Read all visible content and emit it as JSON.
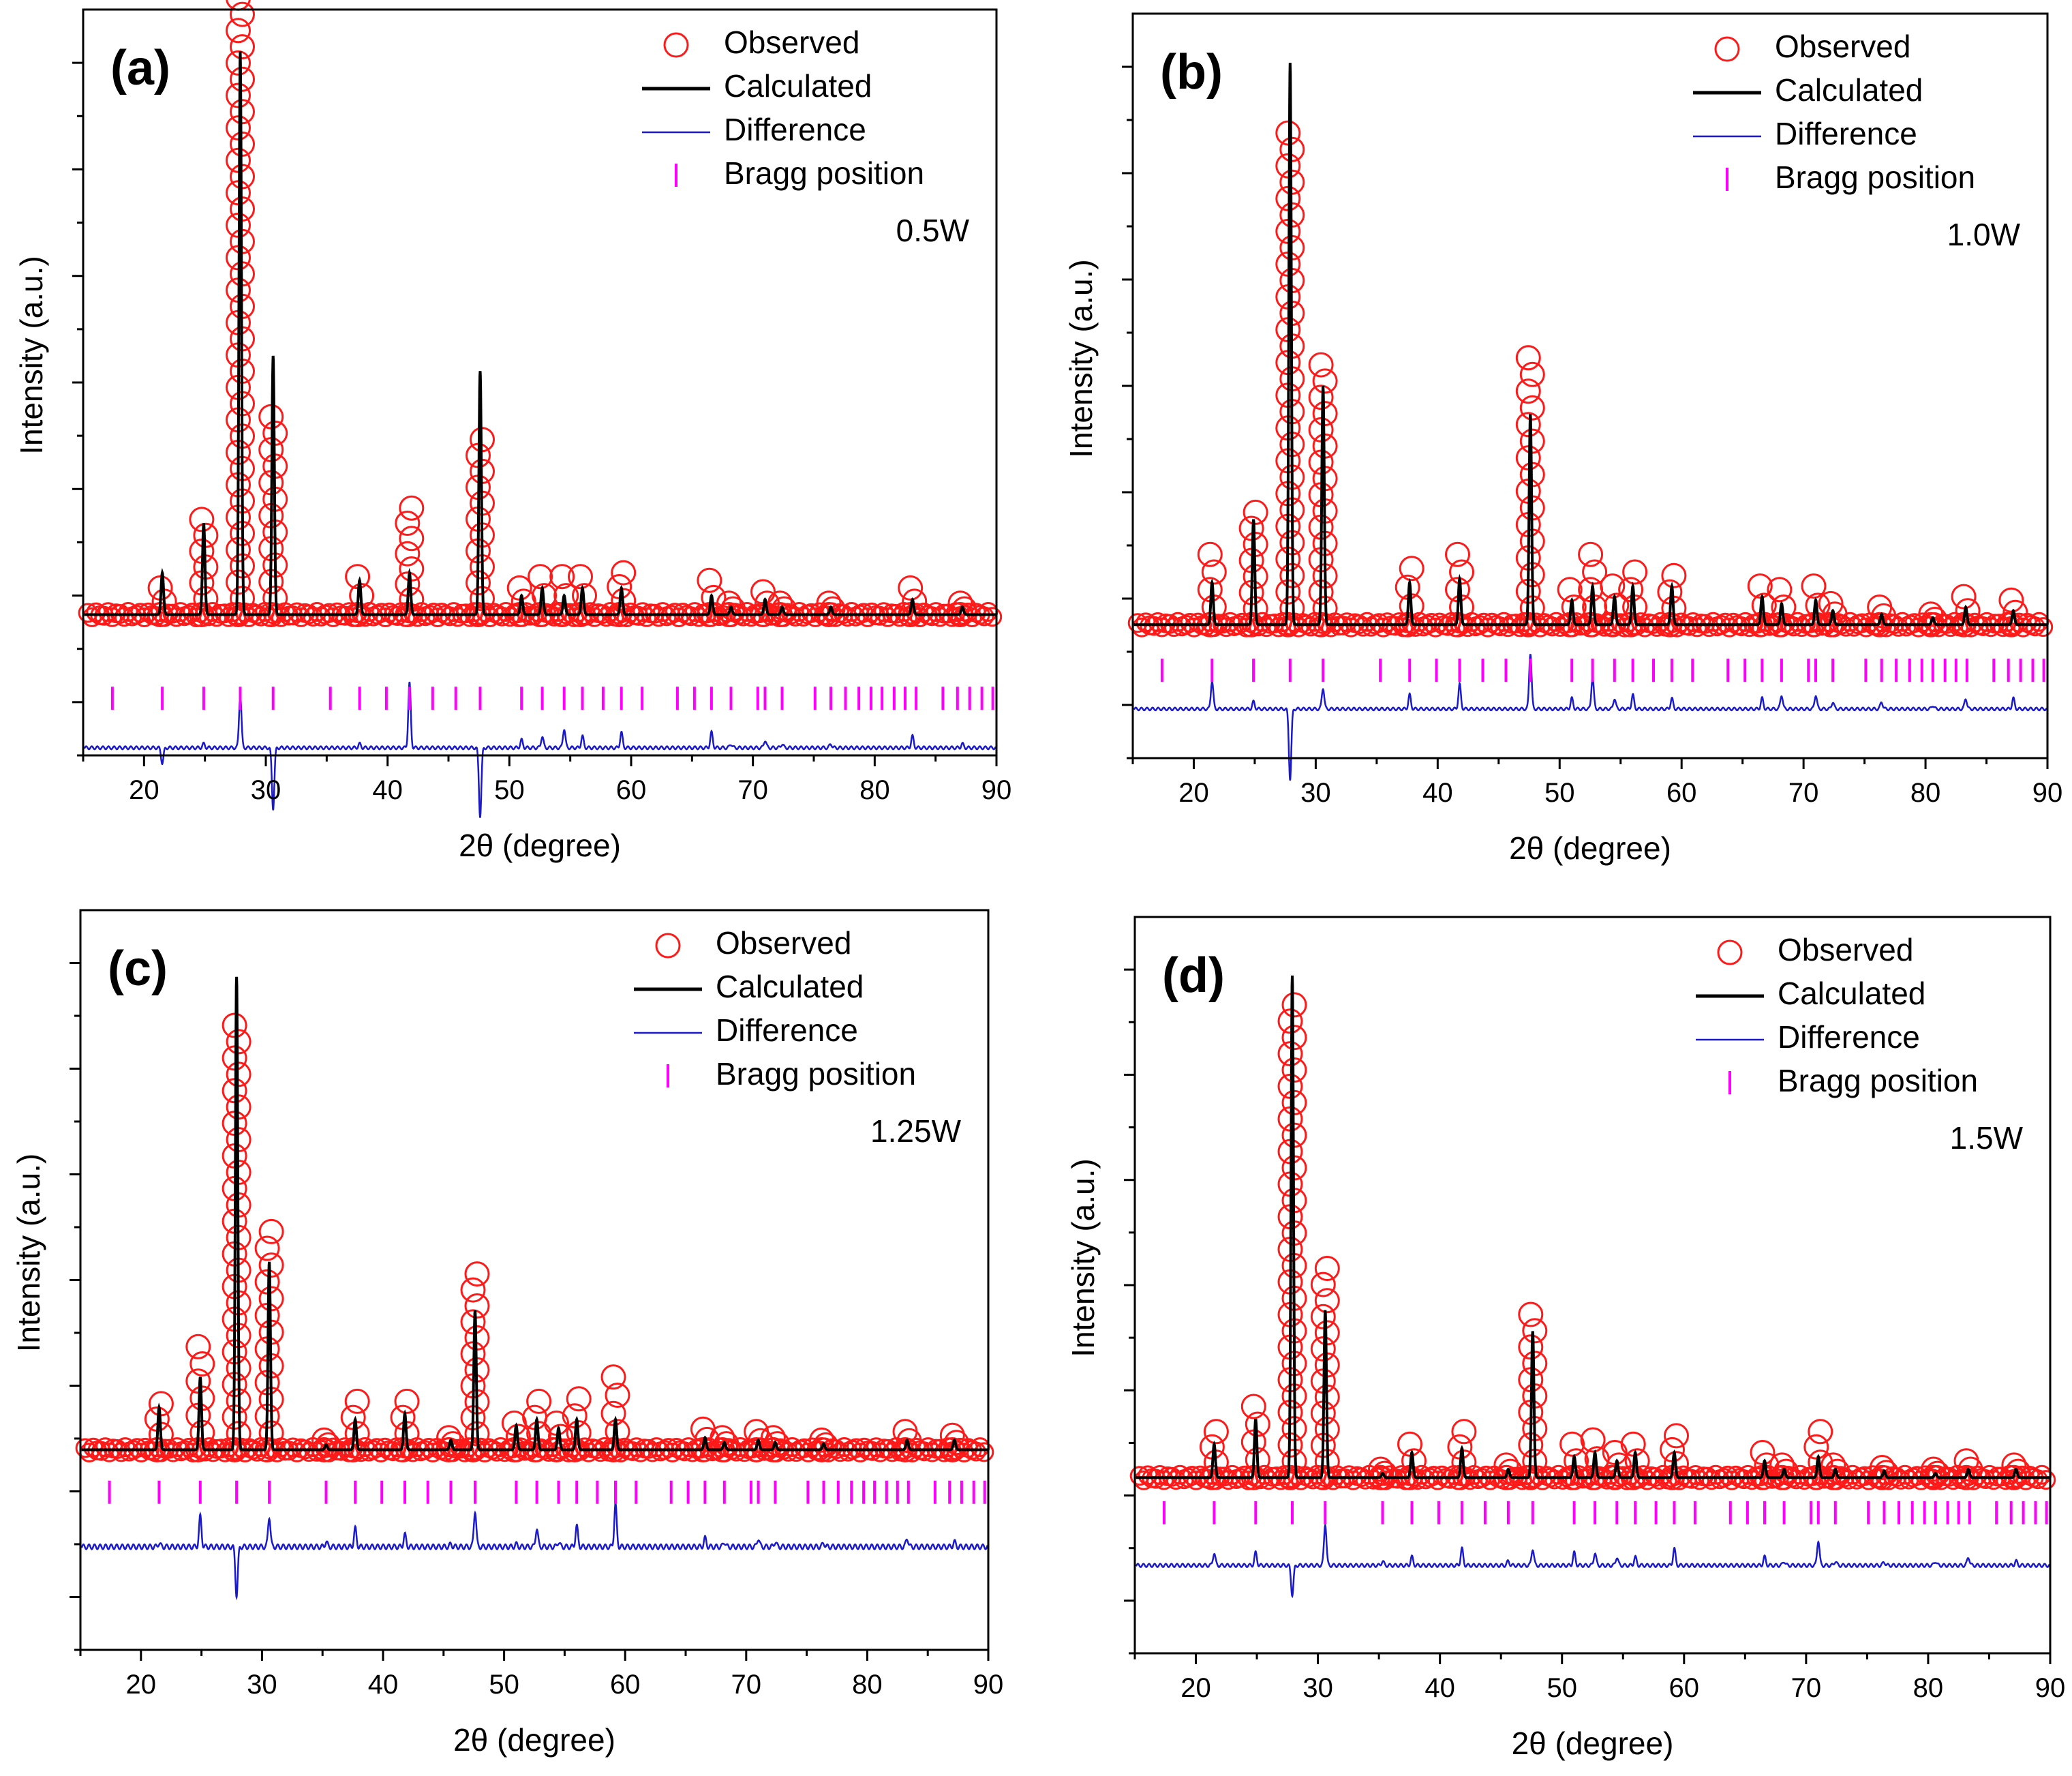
{
  "colors": {
    "observed": "#ff1a1a",
    "calculated": "#000000",
    "difference": "#1a1acc",
    "bragg": "#ff00ff",
    "axis": "#000000"
  },
  "legend_labels": {
    "observed": "Observed",
    "calculated": "Calculated",
    "difference": "Difference",
    "bragg": "Bragg position"
  },
  "chart_data": [
    {
      "type": "line",
      "panel": "(a)",
      "title": "(a)",
      "sample": "0.5W",
      "xlabel": "2θ (degree)",
      "ylabel": "Intensity (a.u.)",
      "xlim": [
        15,
        90
      ],
      "ylim": [
        -1.6,
        8.2
      ],
      "xticks": [
        20,
        30,
        40,
        50,
        60,
        70,
        80,
        90
      ],
      "baseline": 0.25,
      "diff_offset": -1.5,
      "bragg_level": -0.85,
      "peaks": [
        {
          "x": 21.5,
          "calc": 0.55,
          "obs": 0.35
        },
        {
          "x": 24.9,
          "calc": 1.2,
          "obs": 1.25
        },
        {
          "x": 27.9,
          "calc": 7.4,
          "obs": 8.1
        },
        {
          "x": 30.6,
          "calc": 3.4,
          "obs": 2.6
        },
        {
          "x": 37.7,
          "calc": 0.45,
          "obs": 0.5
        },
        {
          "x": 41.8,
          "calc": 0.55,
          "obs": 1.4
        },
        {
          "x": 47.6,
          "calc": 3.2,
          "obs": 2.3
        },
        {
          "x": 51.0,
          "calc": 0.25,
          "obs": 0.35
        },
        {
          "x": 52.7,
          "calc": 0.35,
          "obs": 0.5
        },
        {
          "x": 54.5,
          "calc": 0.25,
          "obs": 0.5
        },
        {
          "x": 56.0,
          "calc": 0.35,
          "obs": 0.5
        },
        {
          "x": 59.2,
          "calc": 0.35,
          "obs": 0.55
        },
        {
          "x": 66.6,
          "calc": 0.25,
          "obs": 0.45
        },
        {
          "x": 68.2,
          "calc": 0.1,
          "obs": 0.15
        },
        {
          "x": 71.0,
          "calc": 0.2,
          "obs": 0.3
        },
        {
          "x": 72.4,
          "calc": 0.1,
          "obs": 0.15
        },
        {
          "x": 76.4,
          "calc": 0.1,
          "obs": 0.15
        },
        {
          "x": 83.1,
          "calc": 0.2,
          "obs": 0.35
        },
        {
          "x": 87.2,
          "calc": 0.1,
          "obs": 0.15
        }
      ],
      "bragg_positions": [
        17.4,
        21.5,
        24.9,
        27.9,
        30.6,
        35.3,
        37.7,
        39.9,
        41.8,
        43.7,
        45.6,
        47.6,
        51.0,
        52.7,
        54.5,
        56.0,
        57.7,
        59.2,
        60.9,
        63.8,
        65.2,
        66.6,
        68.2,
        70.4,
        71.0,
        72.4,
        75.1,
        76.4,
        77.6,
        78.7,
        79.7,
        80.6,
        81.6,
        82.5,
        83.4,
        85.6,
        86.8,
        87.8,
        88.8,
        89.7
      ]
    },
    {
      "type": "line",
      "panel": "(b)",
      "title": "(b)",
      "sample": "1.0W",
      "xlabel": "2θ (degree)",
      "ylabel": "Intensity (a.u.)",
      "xlim": [
        15,
        90
      ],
      "ylim": [
        -1.7,
        8.9
      ],
      "xticks": [
        20,
        30,
        40,
        50,
        60,
        70,
        80,
        90
      ],
      "baseline": 0.2,
      "diff_offset": -1.0,
      "bragg_level": -0.45,
      "peaks": [
        {
          "x": 21.5,
          "calc": 0.6,
          "obs": 1.0
        },
        {
          "x": 24.9,
          "calc": 1.5,
          "obs": 1.6
        },
        {
          "x": 27.9,
          "calc": 8.0,
          "obs": 7.0
        },
        {
          "x": 30.6,
          "calc": 3.4,
          "obs": 3.7
        },
        {
          "x": 37.7,
          "calc": 0.6,
          "obs": 0.8
        },
        {
          "x": 41.8,
          "calc": 0.65,
          "obs": 1.0
        },
        {
          "x": 47.6,
          "calc": 3.0,
          "obs": 3.8
        },
        {
          "x": 51.0,
          "calc": 0.35,
          "obs": 0.5
        },
        {
          "x": 52.7,
          "calc": 0.55,
          "obs": 1.0
        },
        {
          "x": 54.5,
          "calc": 0.4,
          "obs": 0.55
        },
        {
          "x": 56.0,
          "calc": 0.55,
          "obs": 0.75
        },
        {
          "x": 59.2,
          "calc": 0.55,
          "obs": 0.7
        },
        {
          "x": 66.6,
          "calc": 0.4,
          "obs": 0.55
        },
        {
          "x": 68.2,
          "calc": 0.3,
          "obs": 0.5
        },
        {
          "x": 71.0,
          "calc": 0.35,
          "obs": 0.55
        },
        {
          "x": 72.4,
          "calc": 0.2,
          "obs": 0.3
        },
        {
          "x": 76.4,
          "calc": 0.15,
          "obs": 0.25
        },
        {
          "x": 80.6,
          "calc": 0.1,
          "obs": 0.15
        },
        {
          "x": 83.3,
          "calc": 0.25,
          "obs": 0.4
        },
        {
          "x": 87.2,
          "calc": 0.2,
          "obs": 0.35
        }
      ],
      "bragg_positions": [
        17.4,
        21.5,
        24.9,
        27.9,
        30.6,
        35.3,
        37.7,
        39.9,
        41.8,
        43.7,
        45.6,
        47.6,
        51.0,
        52.7,
        54.5,
        56.0,
        57.7,
        59.2,
        60.9,
        63.8,
        65.2,
        66.6,
        68.2,
        70.4,
        71.0,
        72.4,
        75.1,
        76.4,
        77.6,
        78.7,
        79.7,
        80.6,
        81.6,
        82.5,
        83.4,
        85.6,
        86.8,
        87.8,
        88.8,
        89.7
      ]
    },
    {
      "type": "line",
      "panel": "(c)",
      "title": "(c)",
      "sample": "1.25W",
      "xlabel": "2θ (degree)",
      "ylabel": "Intensity (a.u.)",
      "xlim": [
        15,
        90
      ],
      "ylim": [
        -1.6,
        4.5
      ],
      "xticks": [
        20,
        30,
        40,
        50,
        60,
        70,
        80,
        90
      ],
      "baseline": 0.05,
      "diff_offset": -0.75,
      "bragg_level": -0.3,
      "peaks": [
        {
          "x": 21.5,
          "calc": 0.35,
          "obs": 0.38
        },
        {
          "x": 24.9,
          "calc": 0.6,
          "obs": 0.85
        },
        {
          "x": 27.9,
          "calc": 3.9,
          "obs": 3.5
        },
        {
          "x": 30.6,
          "calc": 1.55,
          "obs": 1.8
        },
        {
          "x": 35.3,
          "calc": 0.04,
          "obs": 0.08
        },
        {
          "x": 37.7,
          "calc": 0.25,
          "obs": 0.4
        },
        {
          "x": 41.8,
          "calc": 0.3,
          "obs": 0.4
        },
        {
          "x": 45.6,
          "calc": 0.08,
          "obs": 0.1
        },
        {
          "x": 47.6,
          "calc": 1.15,
          "obs": 1.45
        },
        {
          "x": 51.0,
          "calc": 0.2,
          "obs": 0.22
        },
        {
          "x": 52.7,
          "calc": 0.25,
          "obs": 0.4
        },
        {
          "x": 54.5,
          "calc": 0.18,
          "obs": 0.22
        },
        {
          "x": 56.0,
          "calc": 0.25,
          "obs": 0.42
        },
        {
          "x": 59.2,
          "calc": 0.25,
          "obs": 0.6
        },
        {
          "x": 66.6,
          "calc": 0.1,
          "obs": 0.17
        },
        {
          "x": 68.2,
          "calc": 0.06,
          "obs": 0.1
        },
        {
          "x": 71.0,
          "calc": 0.08,
          "obs": 0.15
        },
        {
          "x": 72.4,
          "calc": 0.06,
          "obs": 0.1
        },
        {
          "x": 76.4,
          "calc": 0.05,
          "obs": 0.08
        },
        {
          "x": 83.3,
          "calc": 0.08,
          "obs": 0.15
        },
        {
          "x": 87.2,
          "calc": 0.08,
          "obs": 0.12
        }
      ],
      "bragg_positions": [
        17.4,
        21.5,
        24.9,
        27.9,
        30.6,
        35.3,
        37.7,
        39.9,
        41.8,
        43.7,
        45.6,
        47.6,
        51.0,
        52.7,
        54.5,
        56.0,
        57.7,
        59.2,
        60.9,
        63.8,
        65.2,
        66.6,
        68.2,
        70.4,
        71.0,
        72.4,
        75.1,
        76.4,
        77.6,
        78.7,
        79.7,
        80.6,
        81.6,
        82.5,
        83.4,
        85.6,
        86.8,
        87.8,
        88.8,
        89.7
      ]
    },
    {
      "type": "line",
      "panel": "(d)",
      "title": "(d)",
      "sample": "1.5W",
      "xlabel": "2θ (degree)",
      "ylabel": "Intensity (a.u.)",
      "xlim": [
        15,
        90
      ],
      "ylim": [
        -2.0,
        6.8
      ],
      "xticks": [
        20,
        30,
        40,
        50,
        60,
        70,
        80,
        90
      ],
      "baseline": 0.1,
      "diff_offset": -0.95,
      "bragg_level": -0.32,
      "peaks": [
        {
          "x": 21.5,
          "calc": 0.4,
          "obs": 0.55
        },
        {
          "x": 24.9,
          "calc": 0.7,
          "obs": 0.85
        },
        {
          "x": 27.9,
          "calc": 6.0,
          "obs": 5.65
        },
        {
          "x": 30.6,
          "calc": 2.0,
          "obs": 2.5
        },
        {
          "x": 35.3,
          "calc": 0.05,
          "obs": 0.1
        },
        {
          "x": 37.7,
          "calc": 0.3,
          "obs": 0.4
        },
        {
          "x": 41.8,
          "calc": 0.35,
          "obs": 0.55
        },
        {
          "x": 45.6,
          "calc": 0.1,
          "obs": 0.15
        },
        {
          "x": 47.6,
          "calc": 1.75,
          "obs": 1.95
        },
        {
          "x": 51.0,
          "calc": 0.25,
          "obs": 0.4
        },
        {
          "x": 52.7,
          "calc": 0.3,
          "obs": 0.45
        },
        {
          "x": 54.5,
          "calc": 0.2,
          "obs": 0.3
        },
        {
          "x": 56.0,
          "calc": 0.3,
          "obs": 0.4
        },
        {
          "x": 59.2,
          "calc": 0.3,
          "obs": 0.5
        },
        {
          "x": 66.6,
          "calc": 0.2,
          "obs": 0.3
        },
        {
          "x": 68.2,
          "calc": 0.1,
          "obs": 0.15
        },
        {
          "x": 71.0,
          "calc": 0.25,
          "obs": 0.55
        },
        {
          "x": 72.4,
          "calc": 0.1,
          "obs": 0.15
        },
        {
          "x": 76.4,
          "calc": 0.08,
          "obs": 0.12
        },
        {
          "x": 80.6,
          "calc": 0.05,
          "obs": 0.1
        },
        {
          "x": 83.3,
          "calc": 0.1,
          "obs": 0.2
        },
        {
          "x": 87.2,
          "calc": 0.1,
          "obs": 0.15
        }
      ],
      "bragg_positions": [
        17.4,
        21.5,
        24.9,
        27.9,
        30.6,
        35.3,
        37.7,
        39.9,
        41.8,
        43.7,
        45.6,
        47.6,
        51.0,
        52.7,
        54.5,
        56.0,
        57.7,
        59.2,
        60.9,
        63.8,
        65.2,
        66.6,
        68.2,
        70.4,
        71.0,
        72.4,
        75.1,
        76.4,
        77.6,
        78.7,
        79.7,
        80.6,
        81.6,
        82.5,
        83.4,
        85.6,
        86.8,
        87.8,
        88.8,
        89.7
      ]
    }
  ]
}
